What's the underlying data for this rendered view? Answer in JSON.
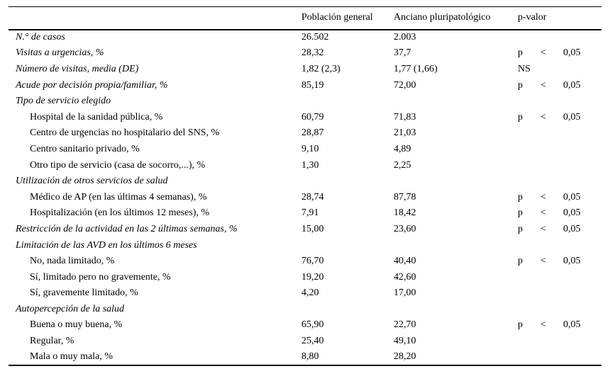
{
  "header": {
    "col_label": "",
    "col_poblacion": "Población general",
    "col_anciano": "Anciano pluripatológico",
    "col_pvalor": "p-valor"
  },
  "rows": [
    {
      "label": "N.° de casos",
      "kind": "main",
      "poblacion": "26.502",
      "anciano": "2.003",
      "p": null
    },
    {
      "label": "Visitas a urgencias, %",
      "kind": "main",
      "poblacion": "28,32",
      "anciano": "37,7",
      "p": {
        "sym": "p",
        "op": "<",
        "val": "0,05"
      }
    },
    {
      "label": "Número de visitas, media (DE)",
      "kind": "main",
      "poblacion": "1,82 (2,3)",
      "anciano": "1,77 (1,66)",
      "p": {
        "text": "NS"
      }
    },
    {
      "label": "Acude por decisión propia/familiar, %",
      "kind": "main",
      "poblacion": "85,19",
      "anciano": "72,00",
      "p": {
        "sym": "p",
        "op": "<",
        "val": "0,05"
      }
    },
    {
      "label": "Tipo de servicio elegido",
      "kind": "main",
      "poblacion": "",
      "anciano": "",
      "p": null
    },
    {
      "label": "Hospital de la sanidad pública, %",
      "kind": "sub",
      "poblacion": "60,79",
      "anciano": "71,83",
      "p": {
        "sym": "p",
        "op": "<",
        "val": "0,05"
      }
    },
    {
      "label": "Centro de urgencias no hospitalario del SNS, %",
      "kind": "sub",
      "poblacion": "28,87",
      "anciano": "21,03",
      "p": null
    },
    {
      "label": "Centro sanitario privado, %",
      "kind": "sub",
      "poblacion": "9,10",
      "anciano": "4,89",
      "p": null
    },
    {
      "label": "Otro tipo de servicio (casa de socorro,...), %",
      "kind": "sub",
      "poblacion": "1,30",
      "anciano": "2,25",
      "p": null
    },
    {
      "label": "Utilización de otros servicios de salud",
      "kind": "main",
      "poblacion": "",
      "anciano": "",
      "p": null
    },
    {
      "label": "Médico de AP (en las últimas 4 semanas), %",
      "kind": "sub",
      "poblacion": "28,74",
      "anciano": "87,78",
      "p": {
        "sym": "p",
        "op": "<",
        "val": "0,05"
      }
    },
    {
      "label": "Hospitalización (en los últimos 12 meses), %",
      "kind": "sub",
      "poblacion": "7,91",
      "anciano": "18,42",
      "p": {
        "sym": "p",
        "op": "<",
        "val": "0,05"
      }
    },
    {
      "label": "Restricción de la actividad en las 2 últimas semanas, %",
      "kind": "main",
      "poblacion": "15,00",
      "anciano": "23,60",
      "p": {
        "sym": "p",
        "op": "<",
        "val": "0,05"
      }
    },
    {
      "label": "Limitación de las AVD en los últimos 6 meses",
      "kind": "main",
      "poblacion": "",
      "anciano": "",
      "p": null
    },
    {
      "label": "No, nada limitado, %",
      "kind": "sub",
      "poblacion": "76,70",
      "anciano": "40,40",
      "p": {
        "sym": "p",
        "op": "<",
        "val": "0,05"
      }
    },
    {
      "label": "Sí, limitado pero no gravemente, %",
      "kind": "sub",
      "poblacion": "19,20",
      "anciano": "42,60",
      "p": null
    },
    {
      "label": "Sí, gravemente limitado, %",
      "kind": "sub",
      "poblacion": "4,20",
      "anciano": "17,00",
      "p": null
    },
    {
      "label": "Autopercepción de la salud",
      "kind": "main",
      "poblacion": "",
      "anciano": "",
      "p": null
    },
    {
      "label": "Buena o muy buena, %",
      "kind": "sub",
      "poblacion": "65,90",
      "anciano": "22,70",
      "p": {
        "sym": "p",
        "op": "<",
        "val": "0,05"
      }
    },
    {
      "label": "Regular, %",
      "kind": "sub",
      "poblacion": "25,40",
      "anciano": "49,10",
      "p": null
    },
    {
      "label": "Mala o muy mala, %",
      "kind": "sub",
      "poblacion": "8,80",
      "anciano": "28,20",
      "p": null
    }
  ]
}
